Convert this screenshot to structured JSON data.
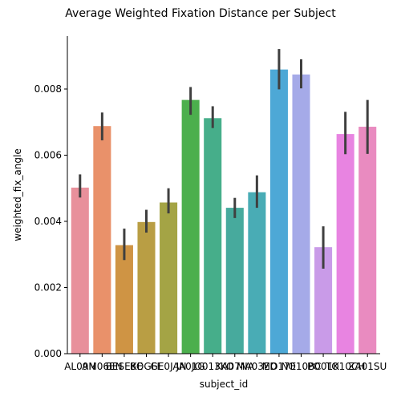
{
  "chart_data": {
    "type": "bar",
    "title": "Average Weighted Fixation Distance per Subject",
    "xlabel": "subject_id",
    "ylabel": "weighted_fix_angle",
    "ylim": [
      0,
      0.0096
    ],
    "yticks": [
      "0.000",
      "0.002",
      "0.004",
      "0.006",
      "0.008"
    ],
    "ytick_values": [
      0,
      0.002,
      0.004,
      0.006,
      0.008
    ],
    "categories": [
      "AL09N",
      "AM06EN",
      "BESEKE",
      "BOGFE",
      "GE0JAN",
      "JA01G",
      "JO013KO",
      "KA07NA",
      "MA03ED",
      "MO17E",
      "NO10BC",
      "PO01K",
      "TO10CH",
      "ZA01SU"
    ],
    "values": [
      0.00502,
      0.00688,
      0.00328,
      0.00398,
      0.00457,
      0.00767,
      0.00712,
      0.00441,
      0.00488,
      0.00859,
      0.00844,
      0.00322,
      0.00664,
      0.00686
    ],
    "err_low": [
      0.00472,
      0.00645,
      0.00283,
      0.00366,
      0.00424,
      0.00722,
      0.00682,
      0.0041,
      0.00441,
      0.00799,
      0.00802,
      0.00257,
      0.00603,
      0.00604
    ],
    "err_high": [
      0.00542,
      0.00729,
      0.00378,
      0.00435,
      0.005,
      0.00806,
      0.00748,
      0.00471,
      0.00539,
      0.00921,
      0.0089,
      0.00385,
      0.00731,
      0.00767
    ],
    "colors": [
      "#e8909b",
      "#e9916a",
      "#cf9444",
      "#b99e44",
      "#a4a445",
      "#4caf4d",
      "#46ae8a",
      "#47aa9d",
      "#49acb5",
      "#4da8d6",
      "#a5aae8",
      "#c99be8",
      "#e884e1",
      "#e98bc0"
    ]
  }
}
